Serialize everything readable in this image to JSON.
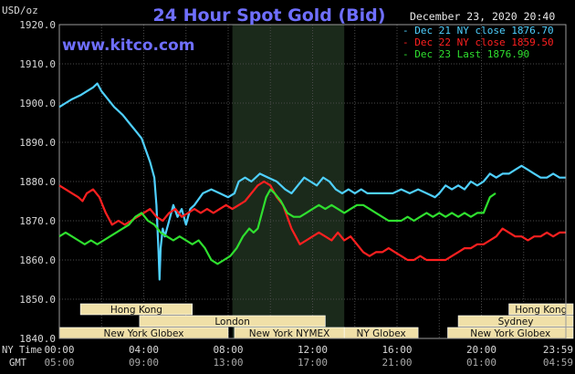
{
  "chart_data": {
    "type": "line",
    "title": "24 Hour Spot Gold (Bid)",
    "unit_label": "USD/oz",
    "timestamp": "December 23, 2020 20:40",
    "watermark": "www.kitco.com",
    "ylim": [
      1840,
      1920
    ],
    "y_ticks": [
      "1920.0",
      "1910.0",
      "1900.0",
      "1890.0",
      "1880.0",
      "1870.0",
      "1860.0",
      "1850.0",
      "1840.0"
    ],
    "x_ticks": [
      "00:00",
      "04:00",
      "08:00",
      "12:00",
      "16:00",
      "20:00",
      "23:59"
    ],
    "x_ticks_gmt": [
      "05:00",
      "09:00",
      "13:00",
      "17:00",
      "21:00",
      "01:00",
      "04:59"
    ],
    "axis_label_nytime": "NY Time",
    "axis_label_gmt": "GMT",
    "grid": true,
    "legend_position": "top-right",
    "colors": {
      "background": "#000000",
      "grid": "#4a4a4a",
      "axis_text": "#d8d8d8",
      "title": "#6f6fff",
      "watermark": "#6f6fff",
      "session_fill": "#f0e0a8",
      "highlight_band": "#1b2a1b"
    },
    "highlight_band_hours": [
      8.2,
      13.5
    ],
    "series": [
      {
        "name": "Dec 21 NY close 1876.70",
        "color": "#4fd0ff",
        "x": [
          0,
          0.3,
          0.6,
          1.0,
          1.3,
          1.6,
          1.8,
          2.0,
          2.3,
          2.6,
          3.0,
          3.3,
          3.6,
          3.9,
          4.1,
          4.3,
          4.5,
          4.6,
          4.7,
          4.75,
          4.8,
          4.9,
          5.0,
          5.2,
          5.4,
          5.6,
          5.8,
          6.0,
          6.2,
          6.4,
          6.8,
          7.2,
          7.6,
          8.0,
          8.3,
          8.5,
          8.8,
          9.1,
          9.5,
          9.9,
          10.3,
          10.7,
          11.0,
          11.3,
          11.6,
          11.9,
          12.2,
          12.5,
          12.8,
          13.1,
          13.4,
          13.7,
          14.0,
          14.3,
          14.6,
          15.0,
          15.4,
          15.8,
          16.2,
          16.6,
          17.0,
          17.4,
          17.8,
          18.0,
          18.3,
          18.6,
          18.9,
          19.2,
          19.5,
          19.8,
          20.1,
          20.4,
          20.7,
          21.0,
          21.3,
          21.6,
          21.9,
          22.2,
          22.5,
          22.8,
          23.1,
          23.4,
          23.7,
          23.98
        ],
        "y": [
          1899,
          1900,
          1901,
          1902,
          1903,
          1904,
          1905,
          1903,
          1901,
          1899,
          1897,
          1895,
          1893,
          1891,
          1888,
          1885,
          1881,
          1874,
          1862,
          1855,
          1863,
          1868,
          1866,
          1870,
          1874,
          1871,
          1873,
          1869,
          1873,
          1874,
          1877,
          1878,
          1877,
          1876,
          1877,
          1880,
          1881,
          1880,
          1882,
          1881,
          1880,
          1878,
          1877,
          1879,
          1881,
          1880,
          1879,
          1881,
          1880,
          1878,
          1877,
          1878,
          1877,
          1878,
          1877,
          1877,
          1877,
          1877,
          1878,
          1877,
          1878,
          1877,
          1876,
          1877,
          1879,
          1878,
          1879,
          1878,
          1880,
          1879,
          1880,
          1882,
          1881,
          1882,
          1882,
          1883,
          1884,
          1883,
          1882,
          1881,
          1881,
          1882,
          1881,
          1881
        ]
      },
      {
        "name": "Dec 22 NY close 1859.50",
        "color": "#ff2020",
        "x": [
          0,
          0.3,
          0.6,
          0.9,
          1.1,
          1.3,
          1.6,
          1.9,
          2.2,
          2.5,
          2.8,
          3.1,
          3.4,
          3.7,
          4.0,
          4.3,
          4.6,
          4.9,
          5.2,
          5.5,
          5.8,
          6.1,
          6.4,
          6.7,
          7.0,
          7.3,
          7.6,
          7.9,
          8.2,
          8.5,
          8.8,
          9.1,
          9.4,
          9.7,
          10.0,
          10.3,
          10.6,
          10.8,
          11.0,
          11.2,
          11.4,
          11.7,
          12.0,
          12.3,
          12.6,
          12.9,
          13.2,
          13.5,
          13.8,
          14.1,
          14.4,
          14.7,
          15.0,
          15.3,
          15.6,
          15.9,
          16.2,
          16.5,
          16.8,
          17.1,
          17.4,
          17.7,
          18.0,
          18.3,
          18.6,
          18.9,
          19.2,
          19.5,
          19.8,
          20.1,
          20.4,
          20.7,
          21.0,
          21.3,
          21.6,
          21.9,
          22.2,
          22.5,
          22.8,
          23.1,
          23.4,
          23.7,
          23.98
        ],
        "y": [
          1879,
          1878,
          1877,
          1876,
          1875,
          1877,
          1878,
          1876,
          1872,
          1869,
          1870,
          1869,
          1870,
          1871,
          1872,
          1873,
          1871,
          1870,
          1872,
          1873,
          1871,
          1872,
          1873,
          1872,
          1873,
          1872,
          1873,
          1874,
          1873,
          1874,
          1875,
          1877,
          1879,
          1880,
          1879,
          1876,
          1874,
          1871,
          1868,
          1866,
          1864,
          1865,
          1866,
          1867,
          1866,
          1865,
          1867,
          1865,
          1866,
          1864,
          1862,
          1861,
          1862,
          1862,
          1863,
          1862,
          1861,
          1860,
          1860,
          1861,
          1860,
          1860,
          1860,
          1860,
          1861,
          1862,
          1863,
          1863,
          1864,
          1864,
          1865,
          1866,
          1868,
          1867,
          1866,
          1866,
          1865,
          1866,
          1866,
          1867,
          1866,
          1867,
          1867
        ]
      },
      {
        "name": "Dec 23 Last 1876.90",
        "color": "#2fe02f",
        "x": [
          0,
          0.3,
          0.6,
          0.9,
          1.2,
          1.5,
          1.8,
          2.1,
          2.4,
          2.7,
          3.0,
          3.3,
          3.6,
          3.9,
          4.2,
          4.5,
          4.8,
          5.1,
          5.4,
          5.7,
          6.0,
          6.3,
          6.6,
          6.9,
          7.2,
          7.5,
          7.8,
          8.1,
          8.4,
          8.7,
          9.0,
          9.2,
          9.4,
          9.6,
          9.8,
          10.0,
          10.2,
          10.5,
          10.8,
          11.1,
          11.4,
          11.7,
          12.0,
          12.3,
          12.6,
          12.9,
          13.2,
          13.5,
          13.8,
          14.1,
          14.4,
          14.7,
          15.0,
          15.3,
          15.6,
          15.9,
          16.2,
          16.5,
          16.8,
          17.1,
          17.4,
          17.7,
          18.0,
          18.3,
          18.6,
          18.9,
          19.2,
          19.5,
          19.8,
          20.1,
          20.4,
          20.67
        ],
        "y": [
          1866,
          1867,
          1866,
          1865,
          1864,
          1865,
          1864,
          1865,
          1866,
          1867,
          1868,
          1869,
          1871,
          1872,
          1870,
          1869,
          1867,
          1866,
          1865,
          1866,
          1865,
          1864,
          1865,
          1863,
          1860,
          1859,
          1860,
          1861,
          1863,
          1866,
          1868,
          1867,
          1868,
          1872,
          1876,
          1878,
          1877,
          1875,
          1872,
          1871,
          1871,
          1872,
          1873,
          1874,
          1873,
          1874,
          1873,
          1872,
          1873,
          1874,
          1874,
          1873,
          1872,
          1871,
          1870,
          1870,
          1870,
          1871,
          1870,
          1871,
          1872,
          1871,
          1872,
          1871,
          1872,
          1871,
          1872,
          1871,
          1872,
          1872,
          1876,
          1877
        ]
      }
    ],
    "sessions": [
      {
        "label": "Hong Kong",
        "start": 1.0,
        "end": 6.3
      },
      {
        "label": "Hong Kong",
        "start": 21.3,
        "end": 24.8
      },
      {
        "label": "London",
        "start": 3.8,
        "end": 12.6
      },
      {
        "label": "Sydney",
        "start": 18.9,
        "end": 24.8
      },
      {
        "label": "New York Globex",
        "start": 0,
        "end": 8.0
      },
      {
        "label": "New York NYMEX",
        "start": 8.3,
        "end": 13.5
      },
      {
        "label": "NY Globex",
        "start": 13.5,
        "end": 17.0
      },
      {
        "label": "New York Globex",
        "start": 18.4,
        "end": 24.8
      }
    ]
  }
}
